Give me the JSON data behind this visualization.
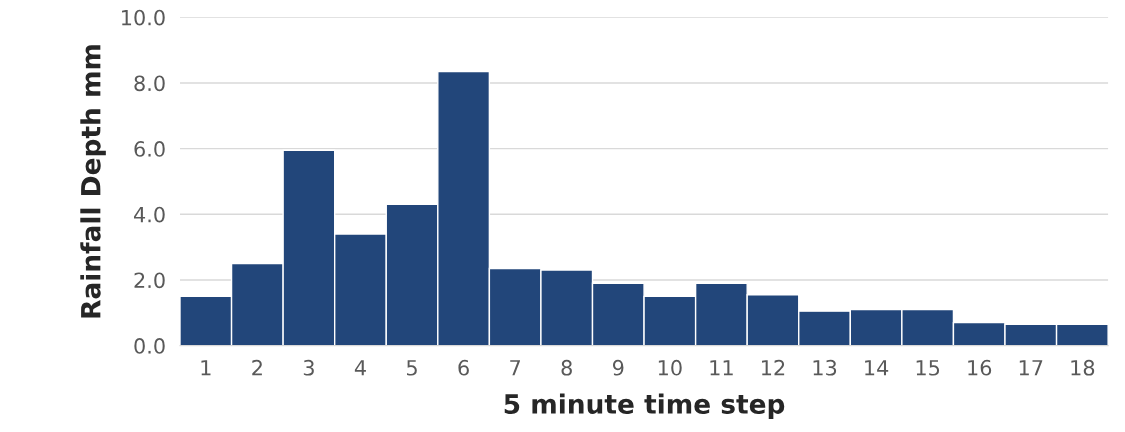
{
  "chart_data": {
    "type": "bar",
    "xlabel": "5 minute time step",
    "ylabel": "Rainfall Depth mm",
    "categories": [
      "1",
      "2",
      "3",
      "4",
      "5",
      "6",
      "7",
      "8",
      "9",
      "10",
      "11",
      "12",
      "13",
      "14",
      "15",
      "16",
      "17",
      "18"
    ],
    "values": [
      1.5,
      2.5,
      5.95,
      3.4,
      4.3,
      8.35,
      2.35,
      2.3,
      1.9,
      1.5,
      1.9,
      1.55,
      1.05,
      1.1,
      1.1,
      0.7,
      0.65,
      0.65
    ],
    "color": "#22467a",
    "ylim": [
      0,
      10
    ],
    "yticks": [
      {
        "value": 0,
        "label": "0.0"
      },
      {
        "value": 2,
        "label": "2.0"
      },
      {
        "value": 4,
        "label": "4.0"
      },
      {
        "value": 6,
        "label": "6.0"
      },
      {
        "value": 8,
        "label": "8.0"
      },
      {
        "value": 10,
        "label": "10.0"
      }
    ],
    "grid": "y"
  }
}
